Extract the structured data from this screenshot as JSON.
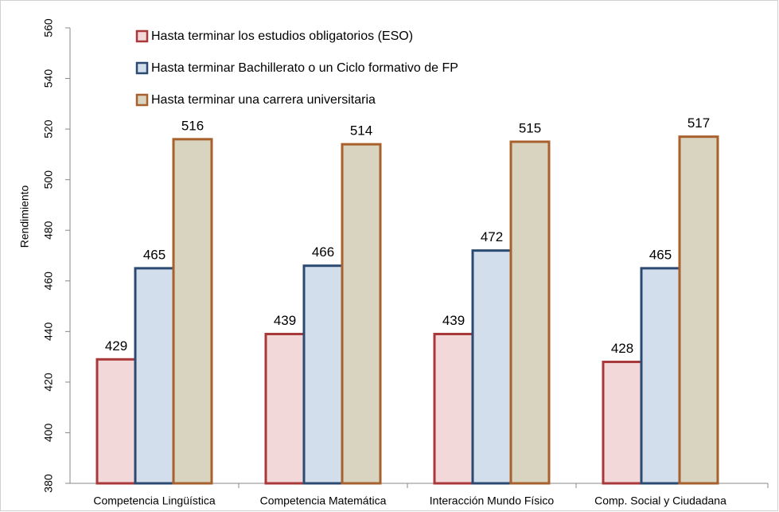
{
  "chart_data": {
    "type": "bar",
    "y_label": "Rendimiento",
    "categories": [
      "Competencia Lingüística",
      "Competencia Matemática",
      "Interacción Mundo Físico",
      "Comp. Social y Ciudadana"
    ],
    "series": [
      {
        "name": "Hasta terminar los estudios obligatorios (ESO)",
        "color": "#f2d8d8",
        "edge": "#a8383a",
        "values": [
          429,
          439,
          439,
          428
        ]
      },
      {
        "name": "Hasta terminar Bachillerato o un Ciclo formativo de FP",
        "color": "#d2deec",
        "edge": "#2b4a72",
        "values": [
          465,
          466,
          472,
          465
        ]
      },
      {
        "name": "Hasta terminar una carrera universitaria",
        "color": "#d8d4bf",
        "edge": "#a8602c",
        "values": [
          516,
          514,
          515,
          517
        ]
      }
    ],
    "ylim": [
      380,
      560
    ],
    "yticks": [
      380,
      400,
      420,
      440,
      460,
      480,
      500,
      520,
      540,
      560
    ],
    "legend": "top-left"
  }
}
